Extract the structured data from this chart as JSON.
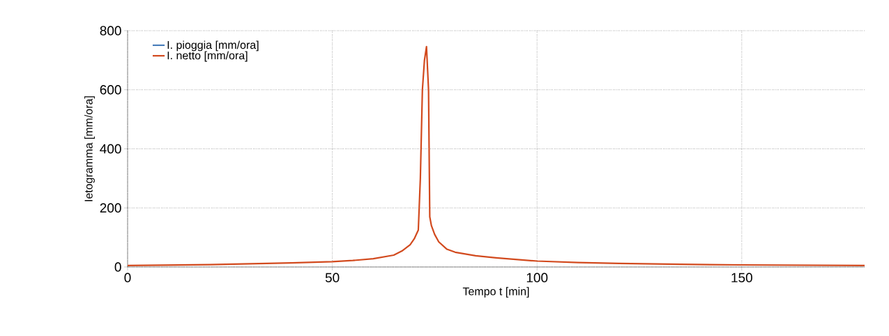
{
  "chart_data": {
    "type": "line",
    "xlabel": "Tempo t [min]",
    "ylabel": "Ietogramma [mm/ora]",
    "xlim": [
      0,
      180
    ],
    "ylim": [
      0,
      800
    ],
    "xticks": [
      0,
      50,
      100,
      150
    ],
    "yticks": [
      0,
      200,
      400,
      600,
      800
    ],
    "grid": true,
    "legend": "top left",
    "marker": "none",
    "line_style": "solid",
    "x": [
      0,
      20,
      40,
      50,
      55,
      60,
      65,
      67,
      69,
      70,
      71,
      71.5,
      72,
      72.5,
      73,
      73.5,
      73.8,
      74.2,
      75,
      76,
      78,
      80,
      85,
      90,
      100,
      110,
      120,
      135,
      150,
      165,
      180
    ],
    "series": [
      {
        "name": "I. pioggia [mm/ora]",
        "color": "#4a7ebb",
        "values": [
          null,
          null,
          null,
          null,
          null,
          null,
          null,
          null,
          null,
          null,
          null,
          null,
          null,
          null,
          null,
          null,
          null,
          null,
          null,
          null,
          null,
          null,
          null,
          null,
          null,
          null,
          null,
          null,
          null,
          null,
          null
        ]
      },
      {
        "name": "I. netto [mm/ora]",
        "color": "#d24a1e",
        "values": [
          5,
          8,
          14,
          18,
          22,
          28,
          40,
          54,
          75,
          95,
          125,
          300,
          600,
          700,
          746,
          600,
          170,
          140,
          110,
          85,
          60,
          50,
          38,
          31,
          20,
          15,
          12,
          9,
          7,
          6,
          5
        ]
      }
    ]
  }
}
